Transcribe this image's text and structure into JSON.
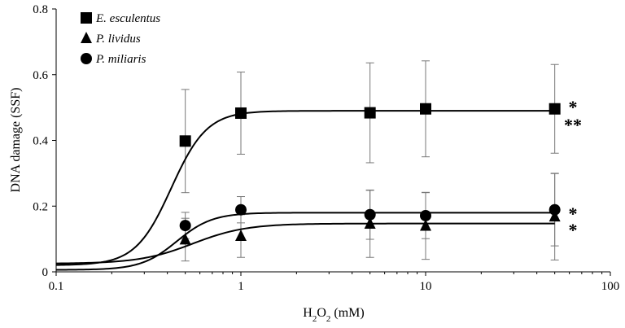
{
  "chart_data": {
    "type": "scatter",
    "xlabel_parts": [
      "H",
      "2",
      "O",
      "2",
      " (mM)"
    ],
    "ylabel": "DNA damage (SSF)",
    "xscale": "log",
    "xlim": [
      0.1,
      100
    ],
    "ylim": [
      0,
      0.8
    ],
    "xticks": [
      "0.1",
      "1",
      "10",
      "100"
    ],
    "yticks": [
      "0",
      "0.2",
      "0.4",
      "0.6",
      "0.8"
    ],
    "grid": false,
    "legend_position": "top-left",
    "series": [
      {
        "name": "E. esculentus",
        "marker": "square",
        "x": [
          0.5,
          1,
          5,
          10,
          50
        ],
        "y": [
          0.398,
          0.483,
          0.484,
          0.496,
          0.496
        ],
        "err": [
          0.157,
          0.125,
          0.152,
          0.146,
          0.135
        ],
        "fit_min": 0.02,
        "fit_max": 0.49,
        "fit_ec50": 0.42,
        "fit_hill": 4.5,
        "significance": [
          "*",
          "**"
        ]
      },
      {
        "name": "P. lividus",
        "marker": "triangle",
        "x": [
          0.5,
          1,
          5,
          10,
          50
        ],
        "y": [
          0.098,
          0.109,
          0.146,
          0.14,
          0.168
        ],
        "err": [
          0.065,
          0.065,
          0.102,
          0.102,
          0.132
        ],
        "fit_min": 0.025,
        "fit_max": 0.147,
        "fit_ec50": 0.55,
        "fit_hill": 3.0,
        "significance": [
          "*"
        ]
      },
      {
        "name": "P. miliaris",
        "marker": "circle",
        "x": [
          0.5,
          1,
          5,
          10,
          50
        ],
        "y": [
          0.141,
          0.189,
          0.174,
          0.171,
          0.189
        ],
        "err": [
          0.04,
          0.04,
          0.075,
          0.07,
          0.11
        ],
        "fit_min": 0.006,
        "fit_max": 0.18,
        "fit_ec50": 0.45,
        "fit_hill": 4.5,
        "significance": [
          "*"
        ]
      }
    ]
  }
}
